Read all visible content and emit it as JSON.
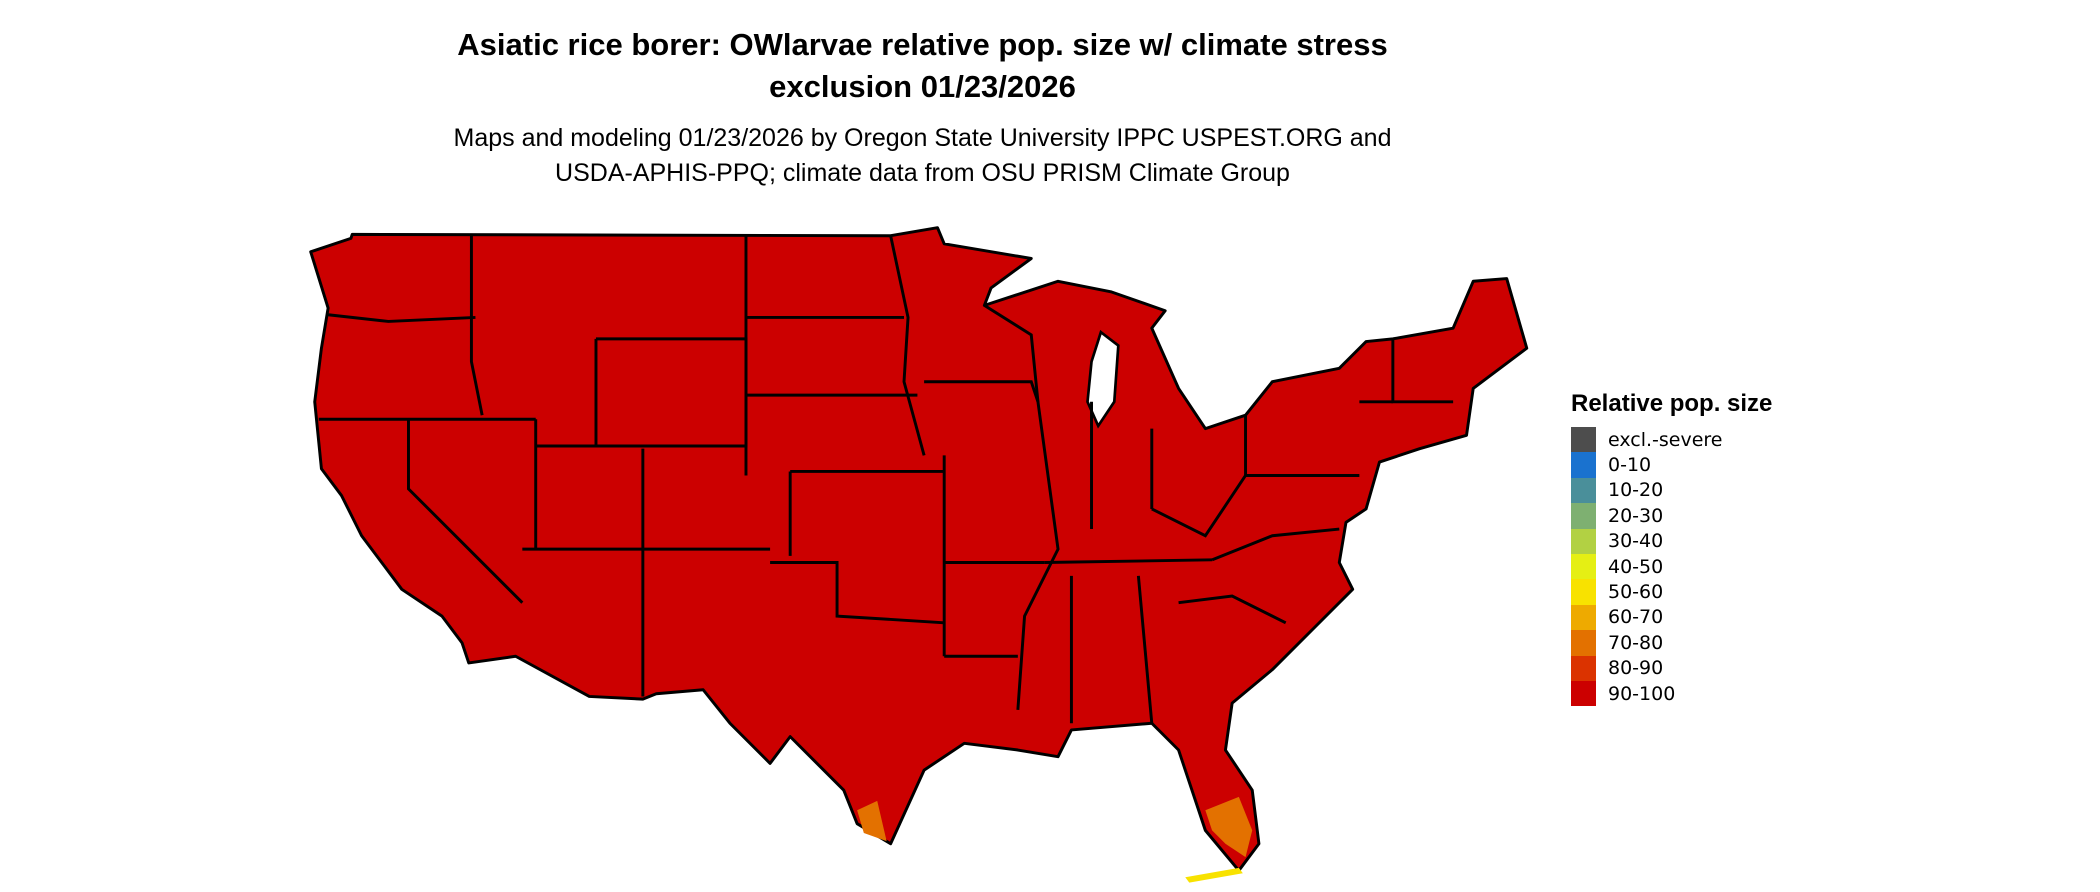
{
  "title": {
    "line1": "Asiatic rice borer: OWlarvae relative pop. size w/ climate stress",
    "line2": "exclusion 01/23/2026"
  },
  "subtitle": {
    "line1": "Maps and modeling 01/23/2026 by Oregon State University IPPC USPEST.ORG and",
    "line2": "USDA-APHIS-PPQ; climate data from OSU PRISM Climate Group"
  },
  "map": {
    "region": "contiguous United States",
    "dominant_class": "90-100",
    "secondary_classes": [
      "70-80",
      "60-70",
      "50-60"
    ],
    "border_color": "#000000"
  },
  "legend": {
    "title": "Relative pop. size",
    "items": [
      {
        "label": "excl.-severe",
        "color": "#4d4d4d"
      },
      {
        "label": "0-10",
        "color": "#1a72cf"
      },
      {
        "label": "10-20",
        "color": "#4a8f9a"
      },
      {
        "label": "20-30",
        "color": "#7eb071"
      },
      {
        "label": "30-40",
        "color": "#b2d143"
      },
      {
        "label": "40-50",
        "color": "#e5ef14"
      },
      {
        "label": "50-60",
        "color": "#f8e200"
      },
      {
        "label": "60-70",
        "color": "#eeaa00"
      },
      {
        "label": "70-80",
        "color": "#e37100"
      },
      {
        "label": "80-90",
        "color": "#db3300"
      },
      {
        "label": "90-100",
        "color": "#cc0000"
      }
    ]
  }
}
